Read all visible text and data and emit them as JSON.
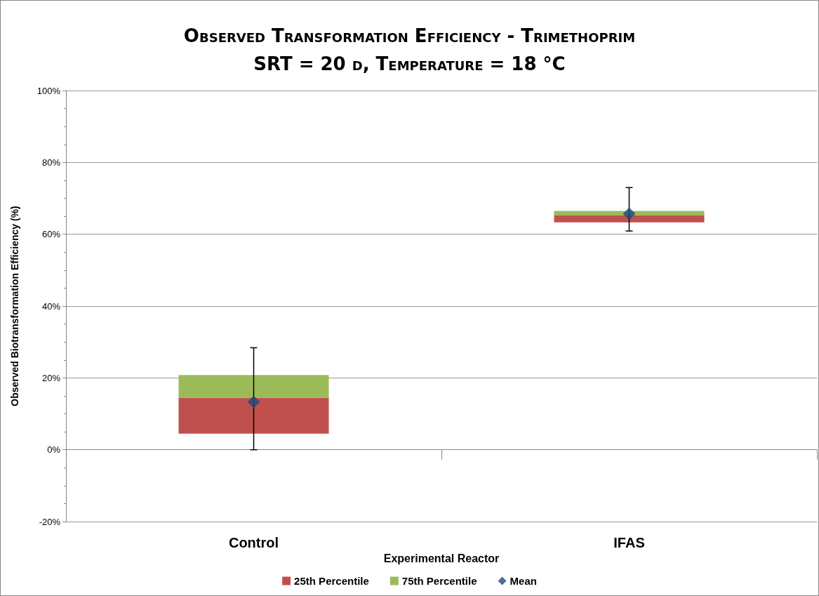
{
  "chart_data": {
    "type": "bar",
    "title": "Observed Transformation Efficiency - Trimethoprim",
    "subtitle": "SRT = 20 d, Temperature = 18 °C",
    "xlabel": "Experimental Reactor",
    "ylabel": "Observed Biotransformation Efficiency (%)",
    "categories": [
      "Control",
      "IFAS"
    ],
    "series": [
      {
        "name": "25th Percentile",
        "color": "#c0504d",
        "base": [
          4.5,
          63.3
        ],
        "values": [
          10.0,
          1.9
        ]
      },
      {
        "name": "75th Percentile",
        "color": "#9bbb59",
        "base": [
          14.5,
          65.2
        ],
        "values": [
          6.3,
          1.3
        ]
      },
      {
        "name": "Mean",
        "type": "scatter",
        "color": "#1f497d",
        "marker": "diamond",
        "x": [
          "Control",
          "IFAS"
        ],
        "values": [
          13.3,
          65.7
        ],
        "errors": [
          [
            0,
            28.4
          ],
          [
            60.9,
            73.0
          ]
        ]
      }
    ],
    "ylim": [
      -20,
      100
    ],
    "yticks": [
      {
        "value": -20,
        "label": "-20%"
      },
      {
        "value": 0,
        "label": "0%"
      },
      {
        "value": 20,
        "label": "20%"
      },
      {
        "value": 40,
        "label": "40%"
      },
      {
        "value": 60,
        "label": "60%"
      },
      {
        "value": 80,
        "label": "80%"
      },
      {
        "value": 100,
        "label": "100%"
      }
    ],
    "grid": "y",
    "legend": "bottom"
  }
}
